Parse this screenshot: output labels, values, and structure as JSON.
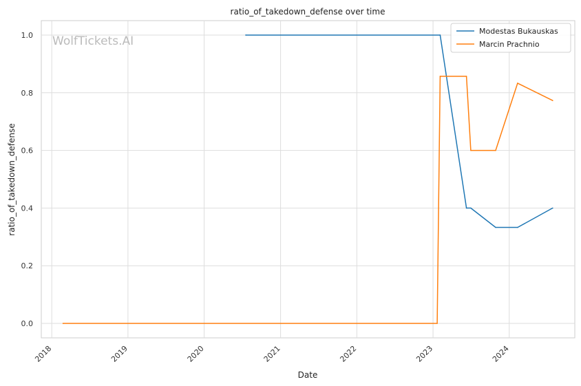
{
  "chart_data": {
    "type": "line",
    "title": "ratio_of_takedown_defense over time",
    "xlabel": "Date",
    "ylabel": "ratio_of_takedown_defense",
    "watermark": "WolfTickets.AI",
    "x_ticks": [
      "2018",
      "2019",
      "2020",
      "2021",
      "2022",
      "2023",
      "2024"
    ],
    "y_ticks": [
      "0.0",
      "0.2",
      "0.4",
      "0.6",
      "0.8",
      "1.0"
    ],
    "xlim": [
      "2017-11-12",
      "2024-11-10"
    ],
    "ylim": [
      -0.05,
      1.05
    ],
    "grid": true,
    "legend_position": "top-right",
    "series": [
      {
        "name": "Modestas Bukauskas",
        "color": "#1f77b4",
        "points": [
          {
            "x": "2020-07-18",
            "y": 1.0
          },
          {
            "x": "2023-02-04",
            "y": 1.0
          },
          {
            "x": "2023-06-10",
            "y": 0.4
          },
          {
            "x": "2023-07-01",
            "y": 0.4
          },
          {
            "x": "2023-10-28",
            "y": 0.333
          },
          {
            "x": "2024-02-10",
            "y": 0.333
          },
          {
            "x": "2024-07-27",
            "y": 0.4
          }
        ]
      },
      {
        "name": "Marcin Prachnio",
        "color": "#ff7f0e",
        "points": [
          {
            "x": "2018-02-24",
            "y": 0.0
          },
          {
            "x": "2023-01-21",
            "y": 0.0
          },
          {
            "x": "2023-02-04",
            "y": 0.857
          },
          {
            "x": "2023-06-10",
            "y": 0.857
          },
          {
            "x": "2023-07-01",
            "y": 0.6
          },
          {
            "x": "2023-10-28",
            "y": 0.6
          },
          {
            "x": "2024-02-10",
            "y": 0.833
          },
          {
            "x": "2024-07-27",
            "y": 0.773
          }
        ]
      }
    ]
  }
}
